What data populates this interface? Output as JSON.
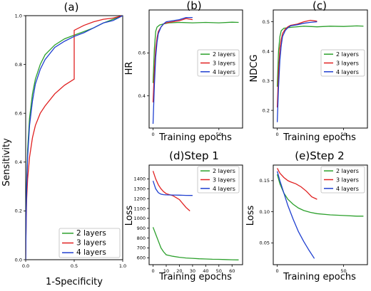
{
  "chart_data": [
    {
      "id": "a",
      "type": "line",
      "title": "(a)",
      "xlabel": "1-Specificity",
      "ylabel": "Sensitivity",
      "xlim": [
        0,
        1
      ],
      "ylim": [
        0,
        1
      ],
      "xticks": [
        "0.0",
        "0.5",
        "1.0"
      ],
      "xtick_values": [
        0,
        0.5,
        1
      ],
      "yticks": [
        "0.0",
        "0.2",
        "0.4",
        "0.6",
        "0.8",
        "1.0"
      ],
      "ytick_values": [
        0,
        0.2,
        0.4,
        0.6,
        0.8,
        1.0
      ],
      "legend": "bottom-right",
      "series": [
        {
          "name": "2 layers",
          "color": "#2ca02c",
          "x": [
            0,
            0.005,
            0.01,
            0.02,
            0.04,
            0.07,
            0.1,
            0.15,
            0.2,
            0.3,
            0.4,
            0.5,
            0.6,
            0.7,
            0.8,
            0.9,
            1.0
          ],
          "y": [
            0,
            0.2,
            0.32,
            0.45,
            0.58,
            0.68,
            0.74,
            0.8,
            0.84,
            0.88,
            0.905,
            0.92,
            0.935,
            0.95,
            0.97,
            0.985,
            1.0
          ]
        },
        {
          "name": "3 layers",
          "color": "#e02020",
          "x": [
            0,
            0.005,
            0.01,
            0.02,
            0.04,
            0.07,
            0.1,
            0.15,
            0.2,
            0.3,
            0.4,
            0.5,
            0.5,
            0.6,
            0.7,
            0.8,
            0.9,
            1.0
          ],
          "y": [
            0,
            0.15,
            0.25,
            0.33,
            0.42,
            0.5,
            0.55,
            0.6,
            0.63,
            0.68,
            0.715,
            0.74,
            0.94,
            0.96,
            0.975,
            0.985,
            0.99,
            1.0
          ]
        },
        {
          "name": "4 layers",
          "color": "#1f3fd0",
          "x": [
            0,
            0.005,
            0.01,
            0.02,
            0.04,
            0.07,
            0.1,
            0.15,
            0.2,
            0.3,
            0.4,
            0.5,
            0.6,
            0.7,
            0.8,
            0.9,
            1.0
          ],
          "y": [
            0,
            0.19,
            0.3,
            0.42,
            0.55,
            0.65,
            0.72,
            0.78,
            0.82,
            0.87,
            0.895,
            0.915,
            0.93,
            0.95,
            0.97,
            0.98,
            1.0
          ]
        }
      ]
    },
    {
      "id": "b",
      "type": "line",
      "title": "(b)",
      "xlabel": "Training epochs",
      "ylabel": "HR",
      "xlim": [
        -3,
        68
      ],
      "ylim": [
        0.25,
        0.8
      ],
      "xticks": [
        "0",
        "50"
      ],
      "xtick_values": [
        0,
        50
      ],
      "yticks": [
        "0.4",
        "0.6"
      ],
      "ytick_values": [
        0.4,
        0.6
      ],
      "legend": "center-right",
      "series": [
        {
          "name": "2 layers",
          "color": "#2ca02c",
          "x": [
            0,
            1,
            2,
            3,
            5,
            8,
            12,
            20,
            30,
            40,
            50,
            60,
            65
          ],
          "y": [
            0.46,
            0.62,
            0.7,
            0.72,
            0.73,
            0.735,
            0.74,
            0.742,
            0.74,
            0.742,
            0.74,
            0.743,
            0.742
          ]
        },
        {
          "name": "3 layers",
          "color": "#e02020",
          "x": [
            0,
            1,
            2,
            3,
            4,
            6,
            8,
            10,
            15,
            20,
            25,
            30
          ],
          "y": [
            0.37,
            0.52,
            0.62,
            0.67,
            0.7,
            0.72,
            0.735,
            0.74,
            0.745,
            0.75,
            0.76,
            0.755
          ]
        },
        {
          "name": "4 layers",
          "color": "#1f3fd0",
          "x": [
            0,
            1,
            2,
            3,
            4,
            6,
            8,
            10,
            15,
            20,
            25,
            30
          ],
          "y": [
            0.27,
            0.45,
            0.58,
            0.65,
            0.69,
            0.72,
            0.735,
            0.745,
            0.75,
            0.755,
            0.765,
            0.765
          ]
        }
      ]
    },
    {
      "id": "c",
      "type": "line",
      "title": "(c)",
      "xlabel": "Training epochs",
      "ylabel": "NDCG",
      "xlim": [
        -3,
        68
      ],
      "ylim": [
        0.14,
        0.54
      ],
      "xticks": [
        "0",
        "50"
      ],
      "xtick_values": [
        0,
        50
      ],
      "yticks": [
        "0.2",
        "0.3",
        "0.4",
        "0.5"
      ],
      "ytick_values": [
        0.2,
        0.3,
        0.4,
        0.5
      ],
      "legend": "center-right",
      "series": [
        {
          "name": "2 layers",
          "color": "#2ca02c",
          "x": [
            0,
            1,
            2,
            3,
            5,
            8,
            12,
            20,
            30,
            40,
            50,
            60,
            65
          ],
          "y": [
            0.28,
            0.4,
            0.45,
            0.47,
            0.478,
            0.48,
            0.482,
            0.485,
            0.483,
            0.485,
            0.484,
            0.486,
            0.485
          ]
        },
        {
          "name": "3 layers",
          "color": "#e02020",
          "x": [
            0,
            1,
            2,
            3,
            4,
            6,
            8,
            10,
            15,
            20,
            25,
            30
          ],
          "y": [
            0.21,
            0.33,
            0.41,
            0.44,
            0.46,
            0.475,
            0.483,
            0.488,
            0.492,
            0.5,
            0.505,
            0.502
          ]
        },
        {
          "name": "4 layers",
          "color": "#1f3fd0",
          "x": [
            0,
            1,
            2,
            3,
            4,
            6,
            8,
            10,
            15,
            20,
            25,
            30
          ],
          "y": [
            0.16,
            0.28,
            0.37,
            0.42,
            0.45,
            0.47,
            0.48,
            0.486,
            0.49,
            0.495,
            0.498,
            0.5
          ]
        }
      ]
    },
    {
      "id": "d",
      "type": "line",
      "title": "(d)Step 1",
      "xlabel": "Training epochs",
      "ylabel": "Loss",
      "xlim": [
        -3,
        68
      ],
      "ylim": [
        530,
        1540
      ],
      "xticks": [
        "0",
        "10",
        "20",
        "30",
        "40",
        "50",
        "60"
      ],
      "xtick_values": [
        0,
        10,
        20,
        30,
        40,
        50,
        60
      ],
      "yticks": [
        "600",
        "700",
        "800",
        "900",
        "1000",
        "1100",
        "1200",
        "1300",
        "1400"
      ],
      "ytick_values": [
        600,
        700,
        800,
        900,
        1000,
        1100,
        1200,
        1300,
        1400
      ],
      "legend": "top-right",
      "series": [
        {
          "name": "2 layers",
          "color": "#2ca02c",
          "x": [
            0,
            2,
            4,
            6,
            8,
            10,
            15,
            20,
            25,
            30,
            35,
            40,
            45,
            50,
            55,
            60,
            65
          ],
          "y": [
            910,
            840,
            770,
            700,
            660,
            630,
            615,
            605,
            598,
            594,
            590,
            588,
            585,
            584,
            582,
            580,
            578
          ]
        },
        {
          "name": "3 layers",
          "color": "#e02020",
          "x": [
            0,
            2,
            4,
            6,
            8,
            10,
            15,
            20,
            25,
            28
          ],
          "y": [
            1480,
            1400,
            1340,
            1300,
            1270,
            1250,
            1230,
            1190,
            1110,
            1075
          ]
        },
        {
          "name": "4 layers",
          "color": "#1f3fd0",
          "x": [
            0,
            2,
            4,
            6,
            8,
            10,
            15,
            20,
            25,
            30
          ],
          "y": [
            1380,
            1300,
            1260,
            1245,
            1240,
            1238,
            1236,
            1235,
            1233,
            1232
          ]
        }
      ]
    },
    {
      "id": "e",
      "type": "line",
      "title": "(e)Step 2",
      "xlabel": "Training epochs",
      "ylabel": "Loss",
      "xlim": [
        -3,
        68
      ],
      "ylim": [
        0.015,
        0.175
      ],
      "xticks": [
        "0",
        "50"
      ],
      "xtick_values": [
        0,
        50
      ],
      "yticks": [
        "0.05",
        "0.10",
        "0.15"
      ],
      "ytick_values": [
        0.05,
        0.1,
        0.15
      ],
      "legend": "top-right",
      "series": [
        {
          "name": "2 layers",
          "color": "#2ca02c",
          "x": [
            0,
            2,
            5,
            8,
            12,
            16,
            20,
            25,
            30,
            40,
            50,
            60,
            65
          ],
          "y": [
            0.16,
            0.145,
            0.13,
            0.12,
            0.112,
            0.106,
            0.102,
            0.099,
            0.097,
            0.095,
            0.094,
            0.093,
            0.093
          ]
        },
        {
          "name": "3 layers",
          "color": "#e02020",
          "x": [
            0,
            2,
            5,
            8,
            10,
            14,
            18,
            22,
            26,
            30
          ],
          "y": [
            0.17,
            0.162,
            0.155,
            0.15,
            0.148,
            0.145,
            0.14,
            0.133,
            0.124,
            0.12
          ]
        },
        {
          "name": "4 layers",
          "color": "#1f3fd0",
          "x": [
            0,
            2,
            5,
            8,
            12,
            16,
            20,
            24,
            28
          ],
          "y": [
            0.165,
            0.15,
            0.13,
            0.11,
            0.088,
            0.068,
            0.052,
            0.038,
            0.025
          ]
        }
      ]
    }
  ]
}
